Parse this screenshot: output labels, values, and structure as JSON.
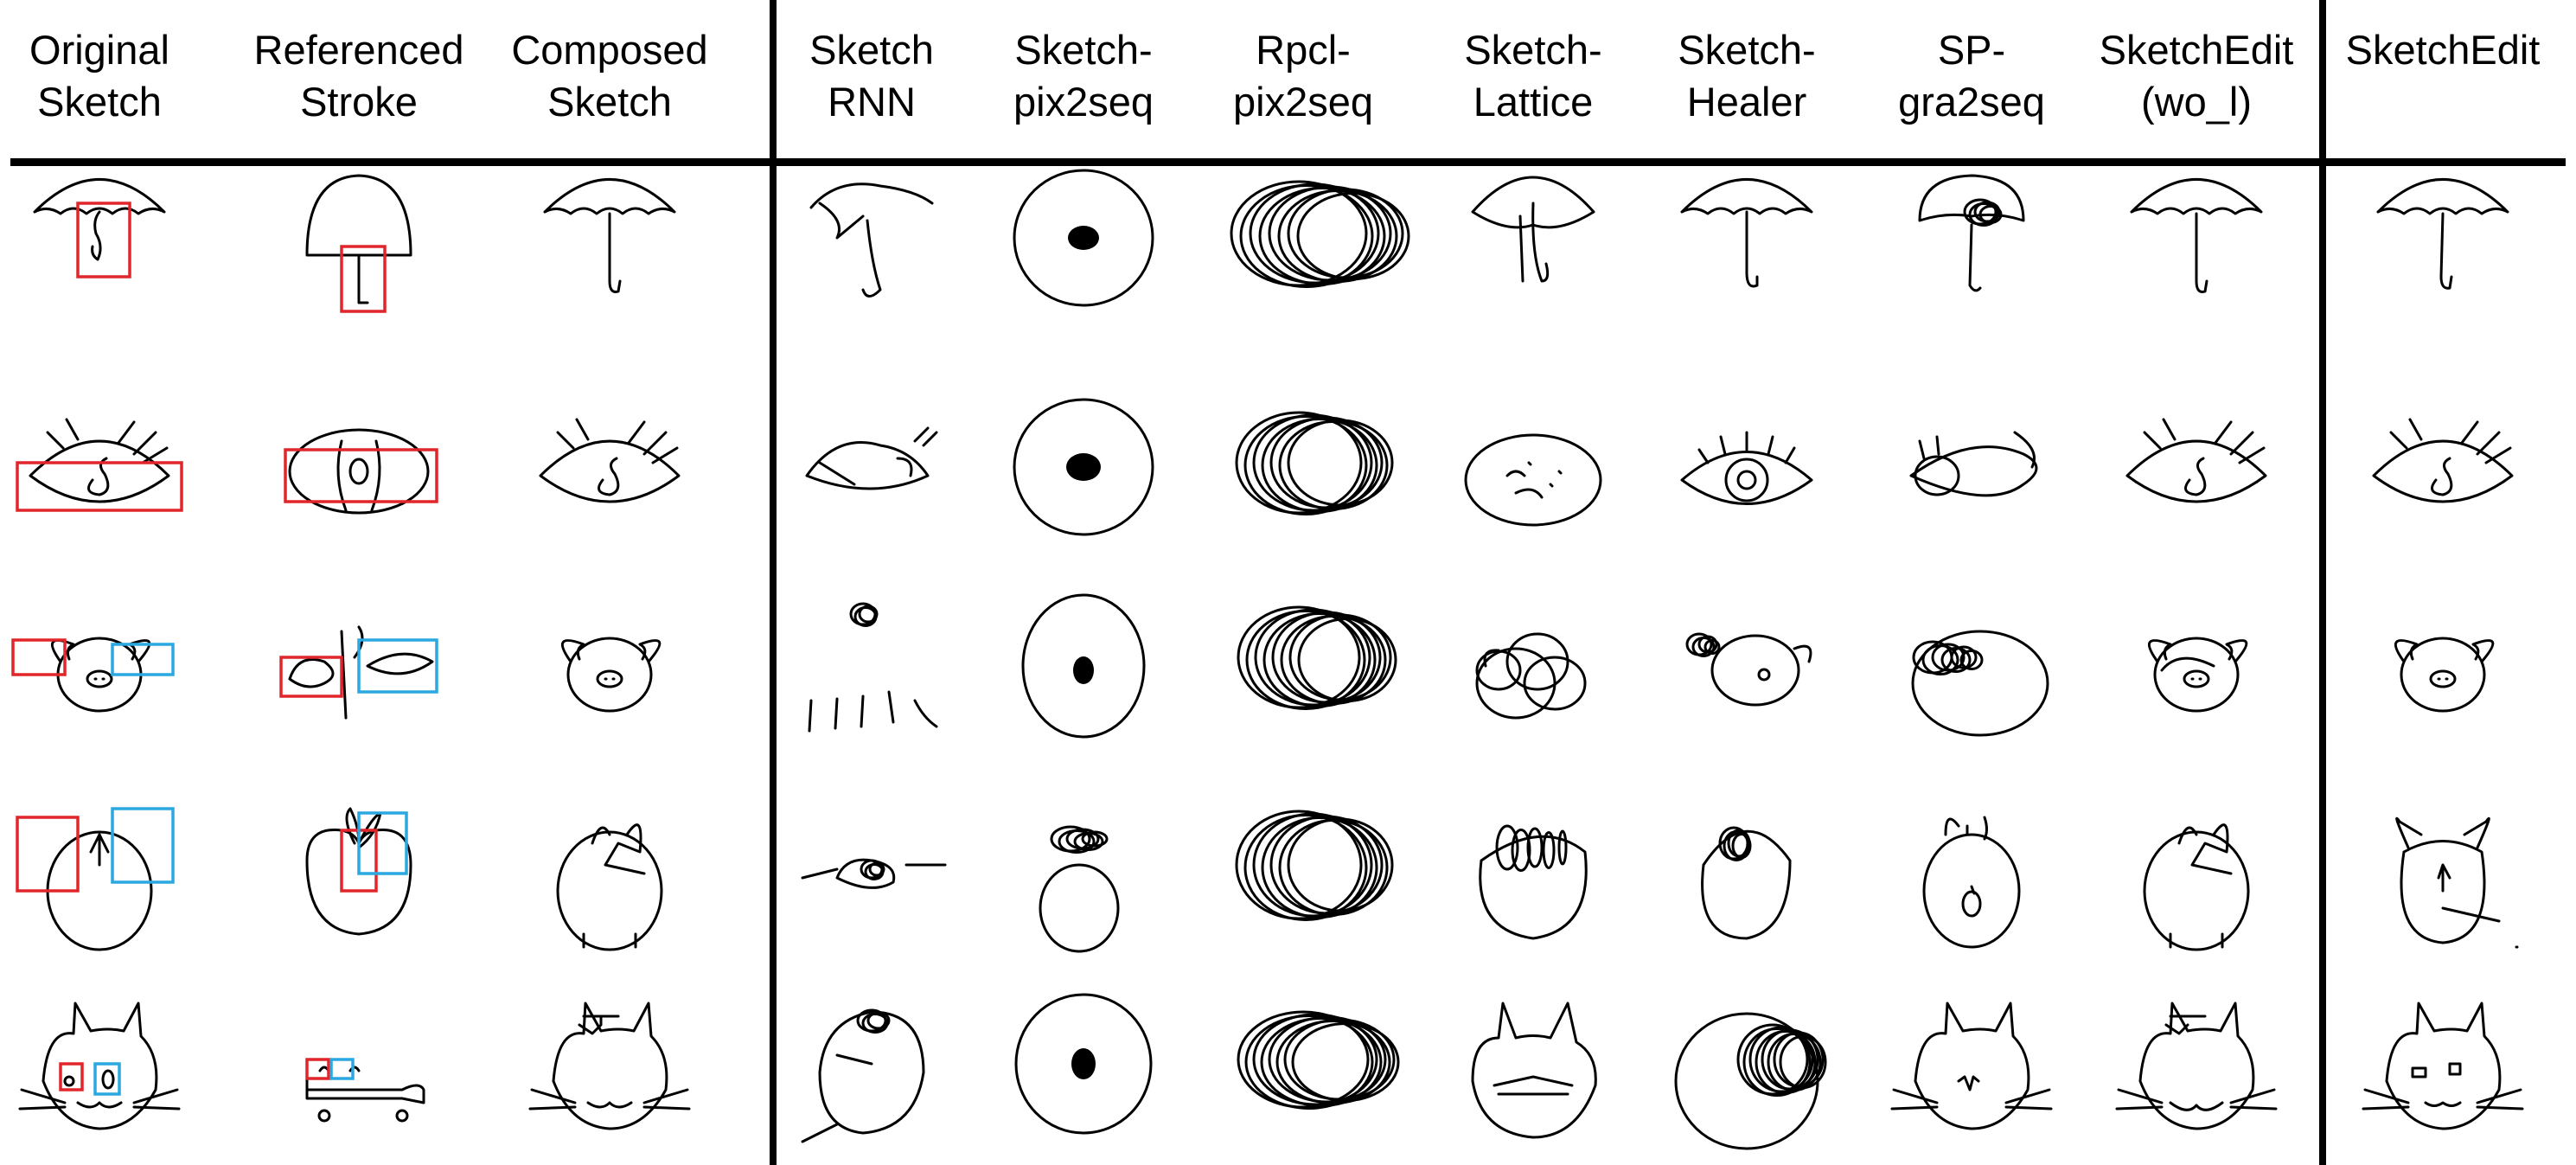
{
  "figure": {
    "columns": [
      {
        "line1": "Original",
        "line2": "Sketch"
      },
      {
        "line1": "Referenced",
        "line2": "Stroke"
      },
      {
        "line1": "Composed",
        "line2": "Sketch"
      },
      {
        "line1": "Sketch",
        "line2": "RNN"
      },
      {
        "line1": "Sketch-",
        "line2": "pix2seq"
      },
      {
        "line1": "Rpcl-",
        "line2": "pix2seq"
      },
      {
        "line1": "Sketch-",
        "line2": "Lattice"
      },
      {
        "line1": "Sketch-",
        "line2": "Healer"
      },
      {
        "line1": "SP-",
        "line2": "gra2seq"
      },
      {
        "line1": "SketchEdit",
        "line2": "(wo_l)"
      },
      {
        "line1": "SketchEdit",
        "line2": ""
      }
    ],
    "rows": [
      "umbrella",
      "eye",
      "pig",
      "mouse-face",
      "cat-face"
    ],
    "colors": {
      "ink": "#000000",
      "box_red": "#e0262b",
      "box_blue": "#2aa8df"
    }
  }
}
